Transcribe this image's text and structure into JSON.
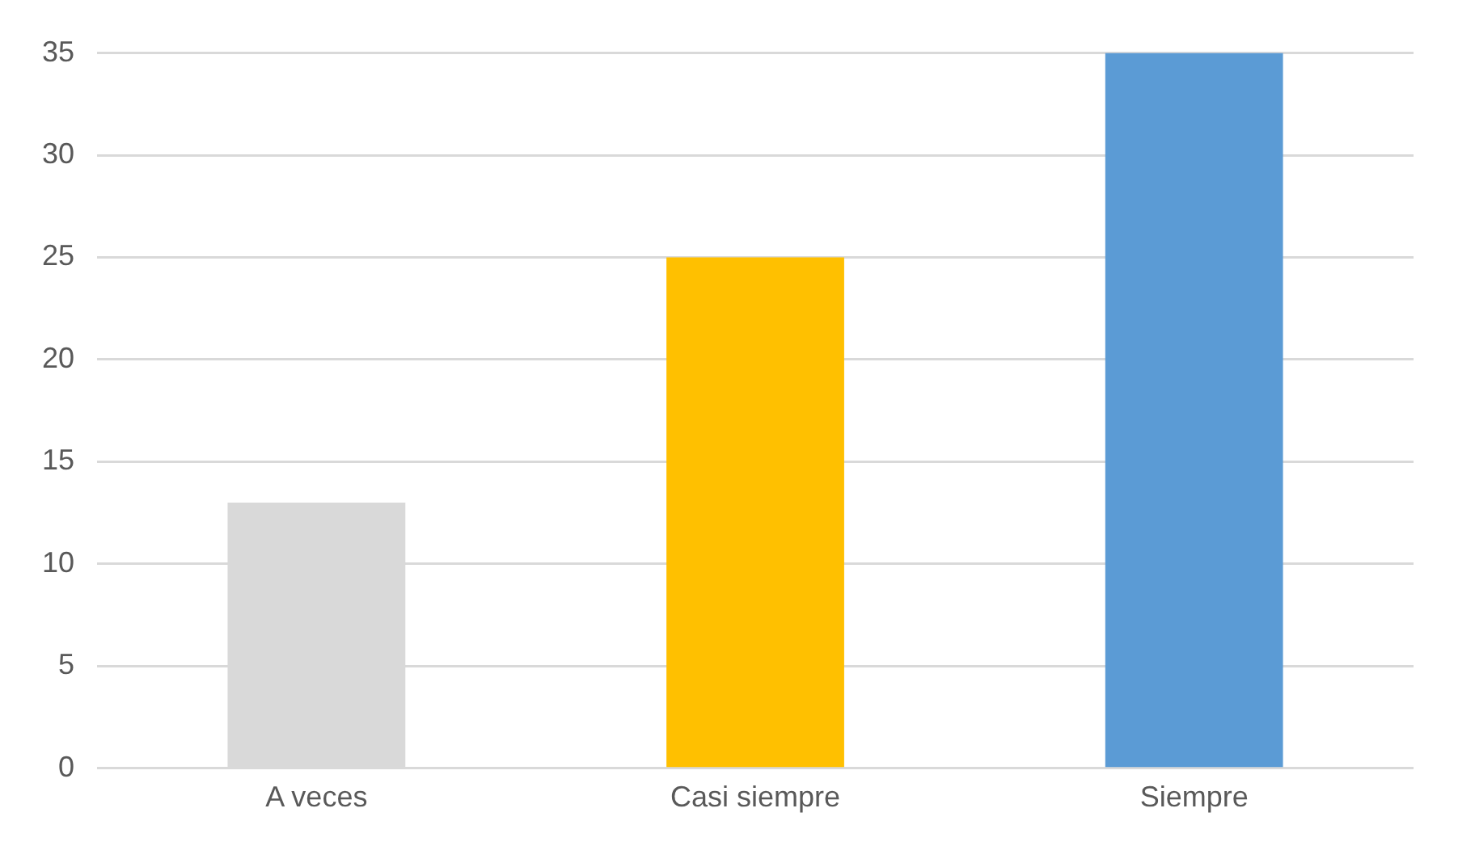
{
  "chart_data": {
    "type": "bar",
    "categories": [
      "A veces",
      "Casi siempre",
      "Siempre"
    ],
    "values": [
      13,
      25,
      35
    ],
    "colors": [
      "#d9d9d9",
      "#ffc000",
      "#5b9bd5"
    ],
    "ylim": [
      0,
      35
    ],
    "yticks": [
      0,
      5,
      10,
      15,
      20,
      25,
      30,
      35
    ],
    "grid": "y",
    "legend": false
  }
}
